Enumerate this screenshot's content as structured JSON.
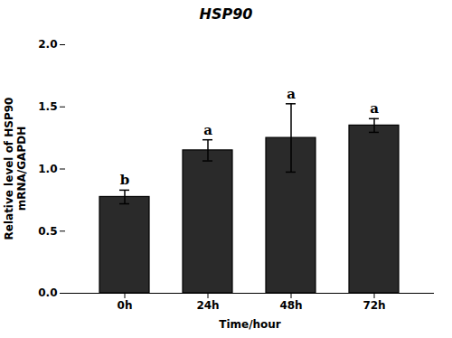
{
  "chart_data": {
    "type": "bar",
    "title": "HSP90",
    "xlabel": "Time/hour",
    "ylabel": "Relative level of HSP90\nmRNA/GAPDH",
    "categories": [
      "0h",
      "24h",
      "48h",
      "72h"
    ],
    "values": [
      0.775,
      1.15,
      1.25,
      1.35
    ],
    "errors": [
      0.055,
      0.085,
      0.275,
      0.055
    ],
    "annotations": [
      "b",
      "a",
      "a",
      "a"
    ],
    "color": "#2a2a2a",
    "ylim": [
      0.0,
      2.0
    ],
    "yticks": [
      {
        "value": 0.0,
        "label": "0.0"
      },
      {
        "value": 0.5,
        "label": "0.5"
      },
      {
        "value": 1.0,
        "label": "1.0"
      },
      {
        "value": 1.5,
        "label": "1.5"
      },
      {
        "value": 2.0,
        "label": "2.0"
      }
    ],
    "grid": false
  }
}
